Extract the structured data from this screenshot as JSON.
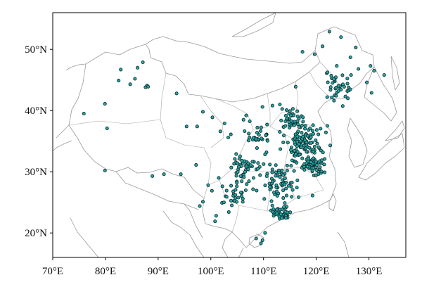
{
  "map": {
    "lon_range": [
      70,
      137
    ],
    "lat_range": [
      16,
      56
    ],
    "x_ticks": [
      {
        "value": 70,
        "label": "70°E"
      },
      {
        "value": 80,
        "label": "80°E"
      },
      {
        "value": 90,
        "label": "90°E"
      },
      {
        "value": 100,
        "label": "100°E"
      },
      {
        "value": 110,
        "label": "110°E"
      },
      {
        "value": 120,
        "label": "120°E"
      },
      {
        "value": 130,
        "label": "130°E"
      }
    ],
    "y_ticks": [
      {
        "value": 50,
        "label": "50°N"
      },
      {
        "value": 40,
        "label": "40°N"
      },
      {
        "value": 30,
        "label": "30°N"
      },
      {
        "value": 20,
        "label": "20°N"
      }
    ],
    "colors": {
      "station_fill": "#2aa7a7",
      "station_edge": "#0d2f2f",
      "borders": "#9a9a9a"
    }
  }
}
